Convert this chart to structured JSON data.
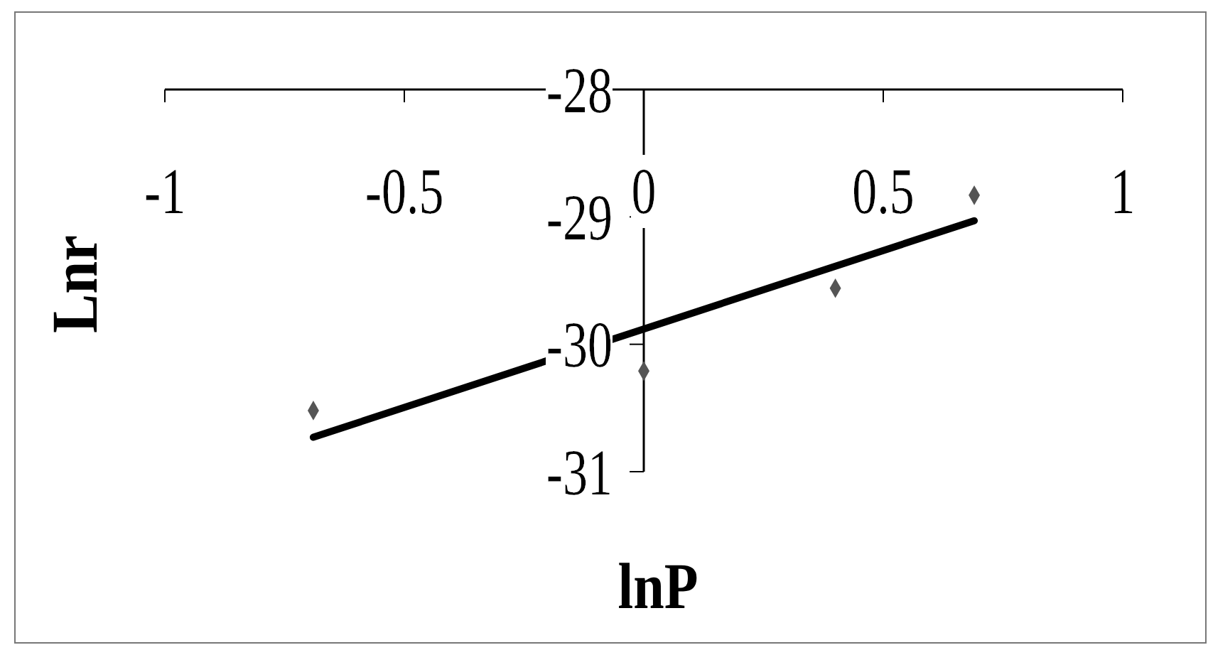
{
  "chart_data": {
    "type": "scatter",
    "xlabel": "lnP",
    "ylabel": "Lnr",
    "xlim": [
      -1,
      1
    ],
    "xticks": [
      -1,
      -0.5,
      0,
      0.5,
      1
    ],
    "ylim": [
      -31,
      -28
    ],
    "yticks": [
      -31,
      -30,
      -29,
      -28
    ],
    "series": [
      {
        "type": "scatter",
        "color": "#555555",
        "marker": "diamond",
        "x": [
          -0.69,
          0,
          0.4,
          0.69
        ],
        "values": [
          -30.52,
          -30.21,
          -29.56,
          -28.83
        ]
      },
      {
        "type": "line",
        "color": "#000000",
        "marker": "none",
        "line_style": "solid",
        "x": [
          -0.69,
          0.69
        ],
        "values": [
          -30.73,
          -29.03
        ]
      }
    ]
  }
}
